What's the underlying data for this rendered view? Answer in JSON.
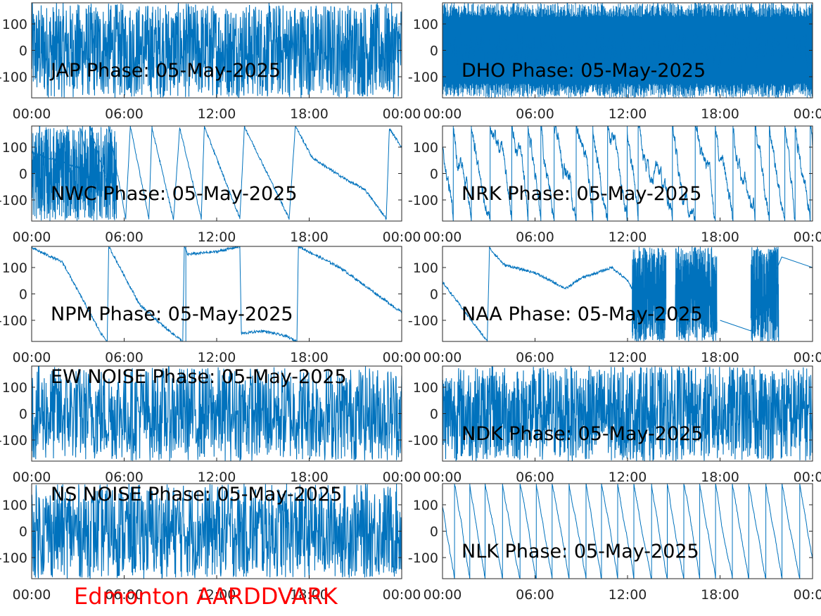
{
  "figure": {
    "footer_text": "Edmonton AARDDVARK",
    "footer_color": "#ff0000",
    "line_color": "#0072BD",
    "axis_color": "#262626"
  },
  "chart_data": [
    {
      "type": "line",
      "title": "JAP Phase: 05-May-2025",
      "xticks": [
        "00:00",
        "06:00",
        "12:00",
        "18:00",
        "00:00"
      ],
      "xlim": [
        "00:00",
        "24:00"
      ],
      "ylim": [
        -180,
        180
      ],
      "yticks": [
        100,
        0,
        -100
      ],
      "ytick_labels": [
        "100",
        "0",
        "-100"
      ],
      "grid": false,
      "pattern": "noise_dense"
    },
    {
      "type": "line",
      "title": "DHO Phase: 05-May-2025",
      "xticks": [
        "00:00",
        "06:00",
        "12:00",
        "18:00",
        "00:00"
      ],
      "xlim": [
        "00:00",
        "24:00"
      ],
      "ylim": [
        -180,
        180
      ],
      "yticks": [
        100,
        0,
        -100
      ],
      "ytick_labels": [
        "100",
        "0",
        "-100"
      ],
      "grid": false,
      "pattern": "fast_wrap"
    },
    {
      "type": "line",
      "title": "NWC Phase: 05-May-2025",
      "xticks": [
        "00:00",
        "06:00",
        "12:00",
        "18:00",
        "00:00"
      ],
      "xlim": [
        "00:00",
        "24:00"
      ],
      "ylim": [
        -180,
        180
      ],
      "yticks": [
        100,
        0,
        -100
      ],
      "ytick_labels": [
        "100",
        "0",
        "-100"
      ],
      "grid": false,
      "x": [
        0,
        3.2,
        3.2,
        3.8,
        3.8,
        5,
        5,
        6.1,
        6.4,
        7.6,
        7.8,
        9.2,
        9.6,
        11,
        11.2,
        13.5,
        13.8,
        16.7,
        17.1,
        18.2,
        19.5,
        20.6,
        21.6,
        23,
        23.2,
        24
      ],
      "y": [
        80,
        20,
        170,
        -40,
        175,
        -60,
        175,
        -170,
        180,
        -170,
        175,
        -175,
        175,
        -170,
        178,
        -170,
        178,
        -170,
        180,
        60,
        10,
        -30,
        -60,
        -170,
        170,
        100
      ]
    },
    {
      "type": "line",
      "title": "NRK Phase: 05-May-2025",
      "xticks": [
        "00:00",
        "06:00",
        "12:00",
        "18:00",
        "00:00"
      ],
      "xlim": [
        "00:00",
        "24:00"
      ],
      "ylim": [
        -180,
        180
      ],
      "yticks": [
        100,
        0,
        -100
      ],
      "ytick_labels": [
        "100",
        "0",
        "-100"
      ],
      "grid": false,
      "pattern": "sawtooth_mid"
    },
    {
      "type": "line",
      "title": "NPM Phase: 05-May-2025",
      "xticks": [
        "00:00",
        "06:00",
        "12:00",
        "18:00",
        "00:00"
      ],
      "xlim": [
        "00:00",
        "24:00"
      ],
      "ylim": [
        -180,
        180
      ],
      "yticks": [
        100,
        0,
        -100
      ],
      "ytick_labels": [
        "100",
        "0",
        "-100"
      ],
      "grid": false,
      "x": [
        0,
        2,
        4.5,
        4.9,
        5,
        7,
        8.5,
        9.8,
        9.9,
        10.1,
        12,
        13.5,
        13.6,
        15,
        16.5,
        17.2,
        17.3,
        20,
        24
      ],
      "y": [
        175,
        120,
        -150,
        -180,
        180,
        -40,
        -120,
        -180,
        180,
        150,
        160,
        180,
        -150,
        -140,
        -160,
        -180,
        180,
        100,
        -70
      ],
      "segments": [
        {
          "x0": 10.0,
          "y0": -180,
          "x1": 10.0,
          "y1": 180
        }
      ]
    },
    {
      "type": "line",
      "title": "NAA Phase: 05-May-2025",
      "xticks": [
        "00:00",
        "06:00",
        "12:00",
        "18:00",
        "00:00"
      ],
      "xlim": [
        "00:00",
        "24:00"
      ],
      "ylim": [
        -180,
        180
      ],
      "yticks": [
        100,
        0,
        -100
      ],
      "ytick_labels": [
        "100",
        "0",
        "-100"
      ],
      "grid": false,
      "x": [
        0,
        2.9,
        3.05,
        3.1,
        4,
        6,
        8,
        9,
        11,
        12,
        12.3
      ],
      "y": [
        45,
        -180,
        180,
        170,
        110,
        80,
        20,
        60,
        100,
        50,
        20
      ],
      "bands": [
        {
          "x0": 12.3,
          "x1": 14.5
        },
        {
          "x0": 15.1,
          "x1": 17.8
        },
        {
          "x0": 20,
          "x1": 21.8
        }
      ],
      "tail": {
        "x": [
          18,
          20,
          22,
          24
        ],
        "y": [
          -100,
          -140,
          140,
          100
        ]
      }
    },
    {
      "type": "line",
      "title": "EW NOISE Phase: 05-May-2025",
      "xticks": [
        "00:00",
        "06:00",
        "12:00",
        "18:00",
        "00:00"
      ],
      "xlim": [
        "00:00",
        "24:00"
      ],
      "ylim": [
        -180,
        180
      ],
      "yticks": [
        100,
        0,
        -100
      ],
      "ytick_labels": [
        "100",
        "0",
        "-100"
      ],
      "grid": false,
      "pattern": "noise"
    },
    {
      "type": "line",
      "title": "NDK Phase: 05-May-2025",
      "xticks": [
        "00:00",
        "06:00",
        "12:00",
        "18:00",
        "00:00"
      ],
      "xlim": [
        "00:00",
        "24:00"
      ],
      "ylim": [
        -180,
        180
      ],
      "yticks": [
        100,
        0,
        -100
      ],
      "ytick_labels": [
        "100",
        "0",
        "-100"
      ],
      "grid": false,
      "pattern": "noise_dense"
    },
    {
      "type": "line",
      "title": "NS NOISE Phase: 05-May-2025",
      "xticks": [
        "00:00",
        "06:00",
        "12:00",
        "18:00",
        "00:00"
      ],
      "xlim": [
        "00:00",
        "24:00"
      ],
      "ylim": [
        -180,
        180
      ],
      "yticks": [
        100,
        0,
        -100
      ],
      "ytick_labels": [
        "100",
        "0",
        "-100"
      ],
      "grid": false,
      "pattern": "noise"
    },
    {
      "type": "line",
      "title": "NLK Phase: 05-May-2025",
      "xticks": [
        "00:00",
        "06:00",
        "12:00",
        "18:00",
        "00:00"
      ],
      "xlim": [
        "00:00",
        "24:00"
      ],
      "ylim": [
        -180,
        180
      ],
      "yticks": [
        100,
        0,
        -100
      ],
      "ytick_labels": [
        "100",
        "0",
        "-100"
      ],
      "grid": false,
      "pattern": "sawtooth"
    }
  ]
}
